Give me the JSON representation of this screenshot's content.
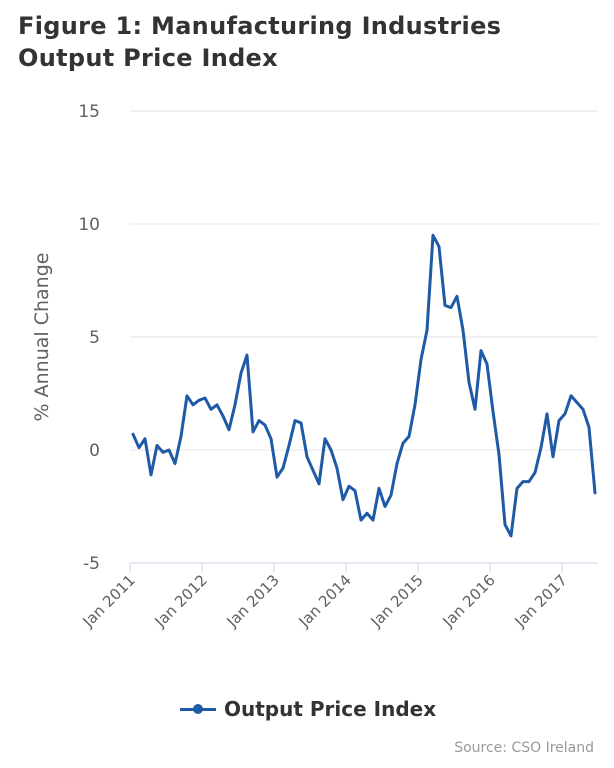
{
  "chart_data": {
    "type": "line",
    "title": "Figure 1: Manufacturing Industries Output Price Index",
    "ylabel": "% Annual Change",
    "xlabel": "",
    "ylim": [
      -5,
      15
    ],
    "yticks": [
      15,
      10,
      5,
      0,
      -5
    ],
    "xticks": [
      "Jan 2011",
      "Jan 2012",
      "Jan 2013",
      "Jan 2014",
      "Jan 2015",
      "Jan 2016",
      "Jan 2017"
    ],
    "grid": true,
    "legend_position": "bottom",
    "x_start": "Jan 2011",
    "x_end": "Jul 2017",
    "series": [
      {
        "name": "Output Price Index",
        "color": "#1f5aa6",
        "values": [
          0.7,
          0.1,
          0.5,
          -1.1,
          0.2,
          -0.1,
          0.0,
          -0.6,
          0.6,
          2.4,
          2.0,
          2.2,
          2.3,
          1.8,
          2.0,
          1.5,
          0.9,
          2.0,
          3.4,
          4.2,
          0.8,
          1.3,
          1.1,
          0.5,
          -1.2,
          -0.8,
          0.2,
          1.3,
          1.2,
          -0.3,
          -0.9,
          -1.5,
          0.5,
          0.0,
          -0.8,
          -2.2,
          -1.6,
          -1.8,
          -3.1,
          -2.8,
          -3.1,
          -1.7,
          -2.5,
          -2.0,
          -0.6,
          0.3,
          0.6,
          2.0,
          4.0,
          5.3,
          9.5,
          9.0,
          6.4,
          6.3,
          6.8,
          5.3,
          3.0,
          1.8,
          4.4,
          3.8,
          1.7,
          -0.2,
          -3.3,
          -3.8,
          -1.7,
          -1.4,
          -1.4,
          -1.0,
          0.1,
          1.6,
          -0.3,
          1.3,
          1.6,
          2.4,
          2.1,
          1.8,
          1.0,
          -1.9
        ]
      }
    ]
  },
  "legend": {
    "label": "Output Price Index"
  },
  "source": "Source: CSO Ireland"
}
